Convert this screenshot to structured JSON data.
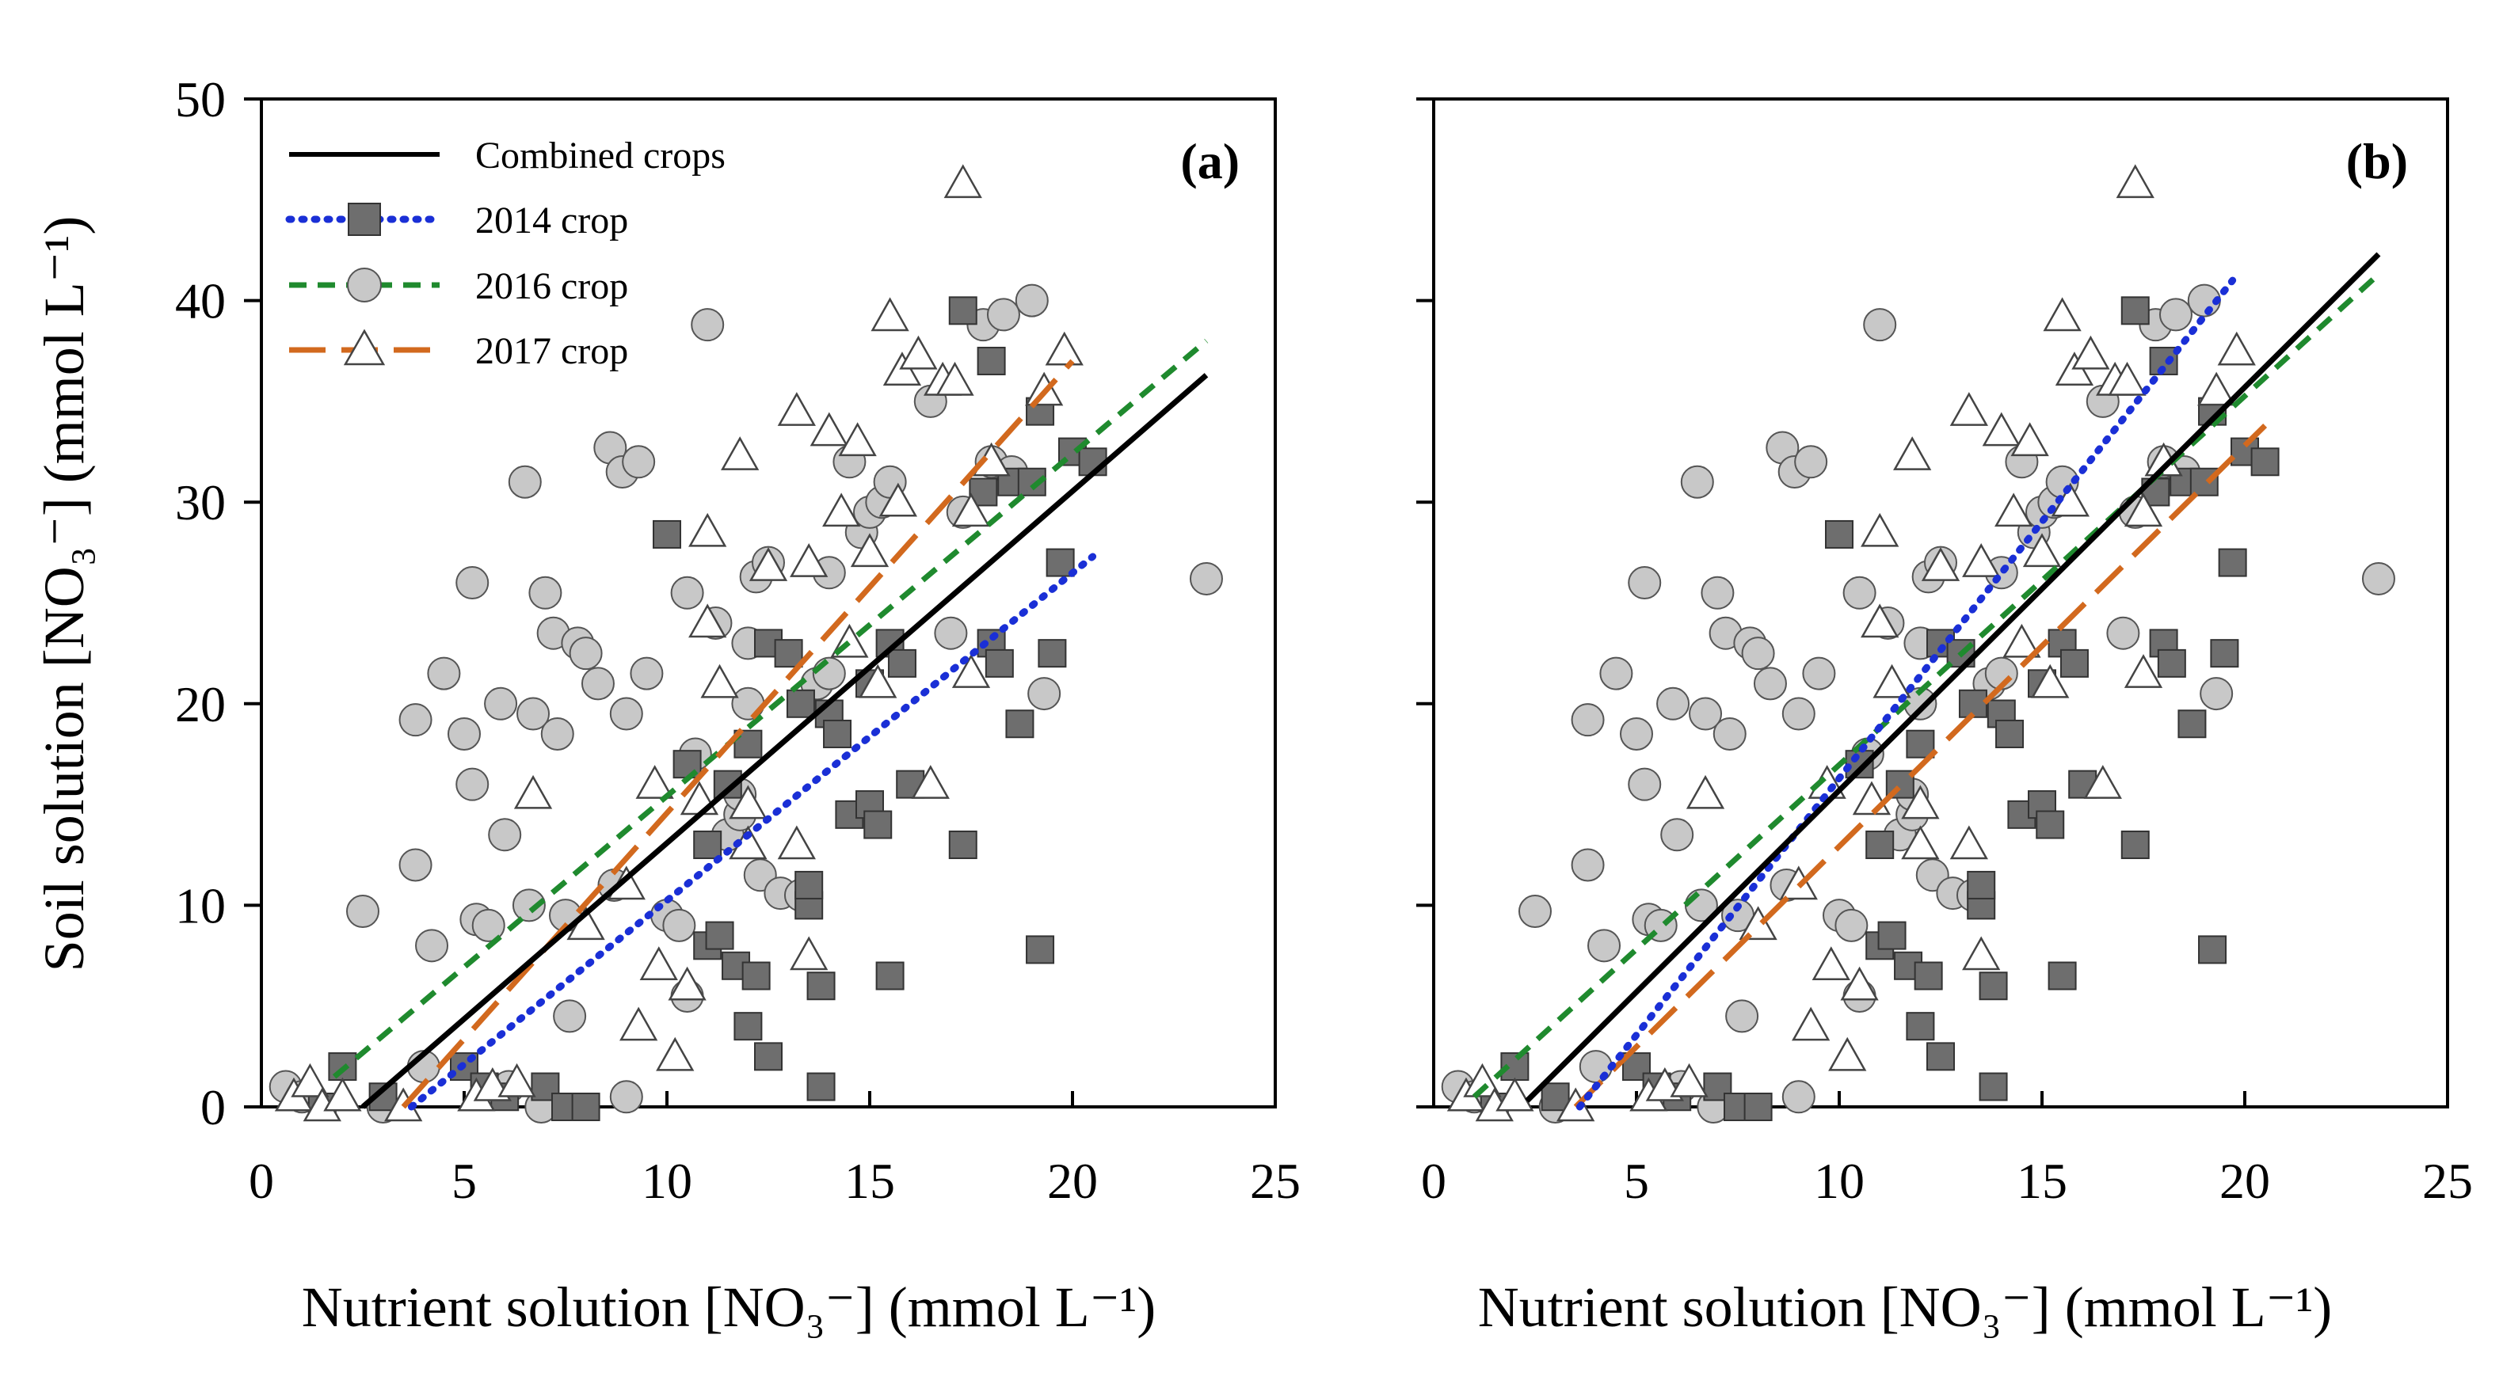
{
  "chart_data": {
    "type": "scatter",
    "x": {
      "label": "Nutrient solution [NO₃⁻] (mmol L⁻¹)",
      "range": [
        0,
        25
      ],
      "ticks": [
        0,
        5,
        10,
        15,
        20,
        25
      ]
    },
    "y": {
      "label": "Soil solution [NO₃⁻] (mmol L⁻¹)",
      "range": [
        0,
        50
      ],
      "ticks": [
        0,
        10,
        20,
        30,
        40,
        50
      ]
    },
    "legend": {
      "placement": "top-left of panel (a)",
      "entries": [
        {
          "series": "combined",
          "label": "Combined crops"
        },
        {
          "series": "s2014",
          "label": "2014 crop"
        },
        {
          "series": "s2016",
          "label": "2016 crop"
        },
        {
          "series": "s2017",
          "label": "2017 crop"
        }
      ]
    },
    "series_style": {
      "combined": {
        "color": "#000000",
        "dash": "solid"
      },
      "s2014": {
        "color": "#1a2fd6",
        "dash": "dotted",
        "marker": "square",
        "marker_fill": "#6e6e6e"
      },
      "s2016": {
        "color": "#1f8a2e",
        "dash": "dashed",
        "marker": "circle",
        "marker_fill": "#c8c8c8"
      },
      "s2017": {
        "color": "#d2691e",
        "dash": "long-dashed",
        "marker": "triangle",
        "marker_fill": "#ffffff"
      }
    },
    "points": {
      "s2014": [
        [
          1.5,
          0
        ],
        [
          2,
          2
        ],
        [
          3,
          0.5
        ],
        [
          5,
          2
        ],
        [
          5.5,
          1
        ],
        [
          6,
          0.5
        ],
        [
          7,
          1
        ],
        [
          7.5,
          0
        ],
        [
          8,
          0
        ],
        [
          10,
          28.4
        ],
        [
          10.5,
          17
        ],
        [
          11,
          13
        ],
        [
          11,
          8
        ],
        [
          11.3,
          8.5
        ],
        [
          11.5,
          16
        ],
        [
          11.7,
          7
        ],
        [
          12,
          4
        ],
        [
          12,
          18
        ],
        [
          12.2,
          6.5
        ],
        [
          12.5,
          23
        ],
        [
          12.5,
          2.5
        ],
        [
          13,
          22.5
        ],
        [
          13.3,
          20
        ],
        [
          13.5,
          10
        ],
        [
          13.5,
          11
        ],
        [
          13.8,
          6
        ],
        [
          13.8,
          1
        ],
        [
          14,
          19.5
        ],
        [
          14.2,
          18.5
        ],
        [
          14.5,
          14.5
        ],
        [
          15,
          21
        ],
        [
          15,
          15
        ],
        [
          15.2,
          14
        ],
        [
          15.5,
          6.5
        ],
        [
          15.5,
          23
        ],
        [
          15.8,
          22
        ],
        [
          16,
          16
        ],
        [
          17.3,
          39.5
        ],
        [
          17.3,
          13
        ],
        [
          17.8,
          30.5
        ],
        [
          18,
          37
        ],
        [
          18,
          23
        ],
        [
          18.2,
          22
        ],
        [
          18.5,
          31
        ],
        [
          18.7,
          19
        ],
        [
          19,
          31
        ],
        [
          19.2,
          7.8
        ],
        [
          19.2,
          34.5
        ],
        [
          19.5,
          22.5
        ],
        [
          19.7,
          27
        ],
        [
          20,
          32.5
        ],
        [
          20.5,
          32
        ]
      ],
      "s2016": [
        [
          0.6,
          1
        ],
        [
          1,
          0.5
        ],
        [
          2.5,
          9.7
        ],
        [
          3,
          0
        ],
        [
          3.8,
          19.2
        ],
        [
          3.8,
          12
        ],
        [
          4,
          2
        ],
        [
          4.2,
          8
        ],
        [
          4.5,
          21.5
        ],
        [
          5,
          18.5
        ],
        [
          5.2,
          26
        ],
        [
          5.2,
          16
        ],
        [
          5.3,
          9.3
        ],
        [
          5.6,
          9
        ],
        [
          5.9,
          20
        ],
        [
          6,
          13.5
        ],
        [
          6.1,
          1
        ],
        [
          6.5,
          31
        ],
        [
          6.6,
          10
        ],
        [
          6.7,
          19.5
        ],
        [
          6.9,
          0
        ],
        [
          7,
          25.5
        ],
        [
          7.2,
          23.5
        ],
        [
          7.3,
          18.5
        ],
        [
          7.5,
          9.5
        ],
        [
          7.6,
          4.5
        ],
        [
          7.8,
          23
        ],
        [
          8,
          22.5
        ],
        [
          8.3,
          21
        ],
        [
          8.6,
          32.7
        ],
        [
          8.7,
          11
        ],
        [
          8.9,
          31.5
        ],
        [
          9,
          19.5
        ],
        [
          9,
          0.5
        ],
        [
          9.3,
          32
        ],
        [
          9.5,
          21.5
        ],
        [
          10,
          9.5
        ],
        [
          10.3,
          9
        ],
        [
          10.5,
          25.5
        ],
        [
          10.5,
          5.5
        ],
        [
          10.7,
          17.5
        ],
        [
          11,
          38.8
        ],
        [
          11.2,
          24
        ],
        [
          11.5,
          13.5
        ],
        [
          11.8,
          14.5
        ],
        [
          11.8,
          15.5
        ],
        [
          12,
          23
        ],
        [
          12,
          20
        ],
        [
          12.2,
          26.3
        ],
        [
          12.3,
          11.5
        ],
        [
          12.5,
          27
        ],
        [
          12.8,
          10.6
        ],
        [
          13.3,
          10.5
        ],
        [
          13.7,
          21
        ],
        [
          14,
          21.5
        ],
        [
          14,
          26.5
        ],
        [
          14.5,
          32
        ],
        [
          14.8,
          28.5
        ],
        [
          15,
          29.5
        ],
        [
          15.3,
          30
        ],
        [
          15.5,
          31
        ],
        [
          16.5,
          35
        ],
        [
          17,
          23.5
        ],
        [
          17.3,
          29.5
        ],
        [
          17.8,
          38.8
        ],
        [
          18,
          32
        ],
        [
          18.3,
          39.3
        ],
        [
          18.5,
          31.5
        ],
        [
          19,
          40
        ],
        [
          19.3,
          20.5
        ],
        [
          23.3,
          26.2
        ]
      ],
      "s2017": [
        [
          0.8,
          0.5
        ],
        [
          1.2,
          1.2
        ],
        [
          1.5,
          0
        ],
        [
          2,
          0.5
        ],
        [
          3.5,
          0
        ],
        [
          5.3,
          0.5
        ],
        [
          5.7,
          1
        ],
        [
          6.3,
          1.2
        ],
        [
          6.7,
          15.5
        ],
        [
          8,
          9
        ],
        [
          9,
          11
        ],
        [
          9.3,
          4
        ],
        [
          9.7,
          16
        ],
        [
          9.8,
          7
        ],
        [
          10.2,
          2.5
        ],
        [
          10.5,
          6
        ],
        [
          10.8,
          15.2
        ],
        [
          11,
          24
        ],
        [
          11,
          28.5
        ],
        [
          11.3,
          21
        ],
        [
          11.8,
          32.3
        ],
        [
          12,
          13
        ],
        [
          12,
          15
        ],
        [
          12.5,
          26.8
        ],
        [
          13.2,
          34.5
        ],
        [
          13.5,
          27
        ],
        [
          13.2,
          13
        ],
        [
          13.5,
          7.5
        ],
        [
          14,
          33.5
        ],
        [
          14.3,
          29.5
        ],
        [
          14.5,
          23
        ],
        [
          14.7,
          33
        ],
        [
          15,
          27.5
        ],
        [
          15.2,
          21
        ],
        [
          15.5,
          39.2
        ],
        [
          15.7,
          30
        ],
        [
          15.8,
          36.5
        ],
        [
          16.2,
          37.3
        ],
        [
          16.5,
          16
        ],
        [
          16.8,
          36
        ],
        [
          17.1,
          36
        ],
        [
          17.3,
          45.8
        ],
        [
          17.5,
          29.5
        ],
        [
          17.5,
          21.5
        ],
        [
          18,
          32
        ],
        [
          19.3,
          35.5
        ],
        [
          19.8,
          37.5
        ]
      ]
    },
    "panels": [
      {
        "label": "(a)",
        "fits": {
          "combined": [
            [
              2.5,
              0
            ],
            [
              23.3,
              36.3
            ]
          ],
          "s2014": [
            [
              3.7,
              0
            ],
            [
              20.5,
              27.3
            ]
          ],
          "s2016": [
            [
              1.8,
              1.5
            ],
            [
              23.3,
              38
            ]
          ],
          "s2017": [
            [
              3.5,
              0
            ],
            [
              20,
              37
            ]
          ]
        }
      },
      {
        "label": "(b)",
        "fits": {
          "combined": [
            [
              2.3,
              0.3
            ],
            [
              23.3,
              42.3
            ]
          ],
          "s2014": [
            [
              3.6,
              0
            ],
            [
              19.7,
              41
            ]
          ],
          "s2016": [
            [
              1,
              0.5
            ],
            [
              23.3,
              41.3
            ]
          ],
          "s2017": [
            [
              3.5,
              0
            ],
            [
              20.5,
              33.8
            ]
          ]
        }
      }
    ]
  }
}
